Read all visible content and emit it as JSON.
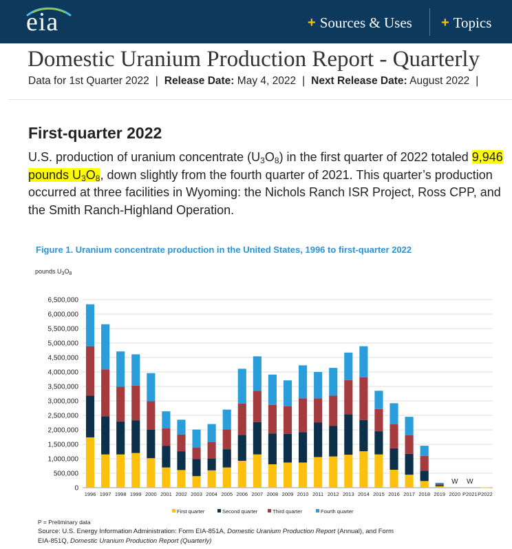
{
  "header": {
    "logo_text": "eia",
    "nav": [
      {
        "plus": "+",
        "label": "Sources & Uses"
      },
      {
        "plus": "+",
        "label": "Topics"
      }
    ]
  },
  "page": {
    "title": "Domestic Uranium Production Report - Quarterly",
    "data_for": "Data for 1st Quarter 2022",
    "release_label": "Release Date:",
    "release_date": "May 4, 2022",
    "next_label": "Next Release Date:",
    "next_date": "August 2022",
    "sep": "|"
  },
  "article": {
    "heading": "First-quarter 2022",
    "p1": "U.S. production of uranium concentrate (U",
    "sub3": "3",
    "p2": "O",
    "sub8": "8",
    "p3": ") in the first quarter of 2022 totaled ",
    "hl1": "9,946 pounds U",
    "hl2": "O",
    "p4": ", down slightly from the fourth quarter of 2021. This quarter’s production occurred at three facilities in Wyoming: the Nichols Ranch ISR Project, Ross CPP, and the Smith Ranch-Highland Operation."
  },
  "figure": {
    "title": "Figure 1.  Uranium concentrate production in the United States, 1996 to first-quarter 2022",
    "yunit_a": "pounds U",
    "yunit_sub3": "3",
    "yunit_b": "O",
    "yunit_sub8": "8",
    "note": "P = Preliminary data",
    "source_a": "Source: U.S. Energy Information Administration: Form EIA-851A, ",
    "source_i1": "Domestic Uranium Production Report",
    "source_b": " (Annual), and Form EIA-851Q, ",
    "source_i2": "Domestic Uranium Production Report (Quarterly)"
  },
  "chart_data": {
    "type": "bar",
    "stacked": true,
    "title": "Uranium concentrate production in the United States, 1996 to first-quarter 2022",
    "ylabel": "pounds U3O8",
    "ylim": [
      0,
      6500000
    ],
    "yticks": [
      0,
      500000,
      1000000,
      1500000,
      2000000,
      2500000,
      3000000,
      3500000,
      4000000,
      4500000,
      5000000,
      5500000,
      6000000,
      6500000
    ],
    "ytick_labels": [
      "0",
      "500,000",
      "1,000,000",
      "1,500,000",
      "2,000,000",
      "2,500,000",
      "3,000,000",
      "3,500,000",
      "4,000,000",
      "4,500,000",
      "5,000,000",
      "5,500,000",
      "6,000,000",
      "6,500,000"
    ],
    "categories": [
      "1996",
      "1997",
      "1998",
      "1999",
      "2000",
      "2001",
      "2002",
      "2003",
      "2004",
      "2005",
      "2006",
      "2007",
      "2008",
      "2009",
      "2010",
      "2011",
      "2012",
      "2013",
      "2014",
      "2015",
      "2016",
      "2017",
      "2018",
      "2019",
      "2020",
      "P2021",
      "P2022"
    ],
    "series": [
      {
        "name": "First quarter",
        "color": "#fcc10f",
        "values": [
          1740000,
          1150000,
          1150000,
          1200000,
          1020000,
          700000,
          610000,
          400000,
          600000,
          700000,
          930000,
          1150000,
          810000,
          870000,
          870000,
          1060000,
          1080000,
          1140000,
          1260000,
          1150000,
          620000,
          450000,
          230000,
          50000,
          0,
          0,
          9946
        ]
      },
      {
        "name": "Second quarter",
        "color": "#0c2f4a",
        "values": [
          1440000,
          1320000,
          1140000,
          1130000,
          980000,
          750000,
          650000,
          590000,
          400000,
          630000,
          890000,
          1120000,
          1060000,
          990000,
          1050000,
          1190000,
          1060000,
          1400000,
          1080000,
          800000,
          740000,
          720000,
          360000,
          40000,
          0,
          0,
          0
        ]
      },
      {
        "name": "Third quarter",
        "color": "#a33b3f",
        "values": [
          1710000,
          1620000,
          1200000,
          1200000,
          990000,
          600000,
          580000,
          400000,
          580000,
          680000,
          1090000,
          1080000,
          990000,
          950000,
          1170000,
          840000,
          1040000,
          1180000,
          1470000,
          770000,
          830000,
          640000,
          510000,
          40000,
          0,
          0,
          0
        ]
      },
      {
        "name": "Fourth quarter",
        "color": "#2a9ddb",
        "values": [
          1450000,
          1560000,
          1220000,
          1080000,
          970000,
          590000,
          510000,
          620000,
          620000,
          690000,
          1200000,
          1190000,
          1050000,
          900000,
          1140000,
          910000,
          960000,
          950000,
          1080000,
          630000,
          730000,
          640000,
          350000,
          40000,
          0,
          0,
          0
        ]
      }
    ],
    "withheld": {
      "2020": "W",
      "P2021": "W"
    },
    "legend_position": "bottom",
    "grid": true
  }
}
